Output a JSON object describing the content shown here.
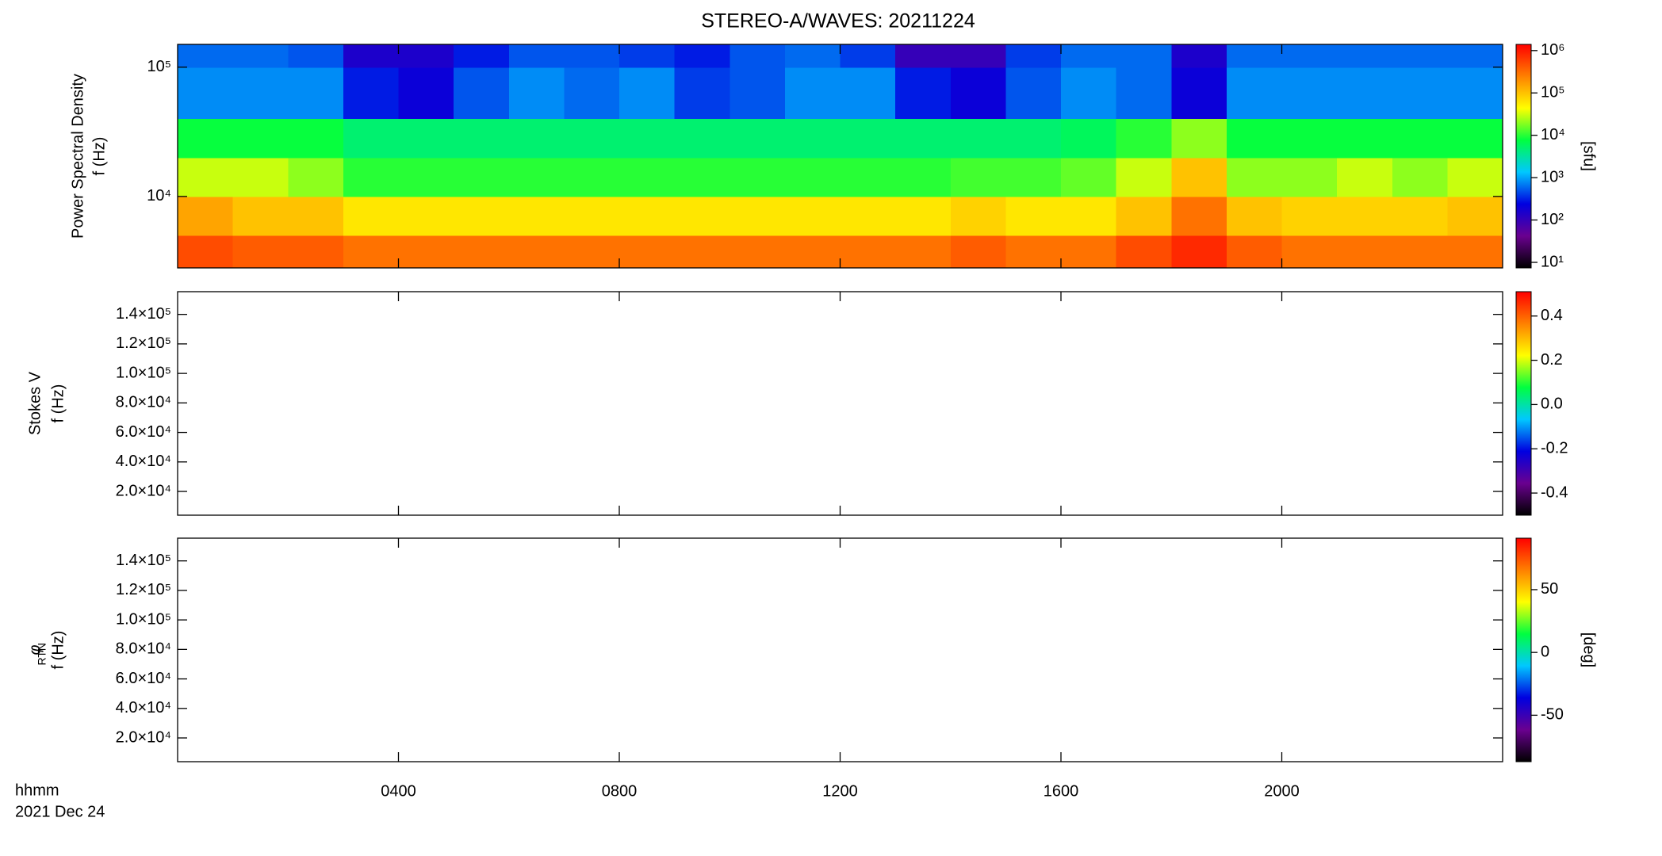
{
  "title": "STEREO-A/WAVES: 20211224",
  "time_axis": {
    "xlim": [
      0,
      24
    ],
    "xticks": [
      {
        "value": 4,
        "label": "0400"
      },
      {
        "value": 8,
        "label": "0800"
      },
      {
        "value": 12,
        "label": "1200"
      },
      {
        "value": 16,
        "label": "1600"
      },
      {
        "value": 20,
        "label": "2000"
      }
    ],
    "label": "hhmm",
    "date": "2021 Dec 24"
  },
  "colormap": [
    "#000000",
    "#6a0090",
    "#0000e0",
    "#00c8ff",
    "#00ff40",
    "#ffff00",
    "#ff8000",
    "#ff0000"
  ],
  "chart_data": [
    {
      "type": "heatmap",
      "ylabel": [
        "Power Spectral Density",
        "f (Hz)"
      ],
      "log_y": true,
      "ylim": [
        2800,
        150000
      ],
      "yticks": [
        {
          "value": 10000,
          "label": "10⁴"
        },
        {
          "value": 100000,
          "label": "10⁵"
        }
      ],
      "x_bins": [
        0,
        1,
        2,
        3,
        4,
        5,
        6,
        7,
        8,
        9,
        10,
        11,
        12,
        13,
        14,
        15,
        16,
        17,
        18,
        19,
        20,
        21,
        22,
        23,
        24
      ],
      "y_bins": [
        2800,
        5000,
        10000,
        20000,
        40000,
        100000,
        150000
      ],
      "z": [
        [
          500000,
          400000,
          400000,
          300000,
          300000,
          300000,
          300000,
          300000,
          300000,
          300000,
          300000,
          300000,
          300000,
          300000,
          400000,
          300000,
          300000,
          500000,
          800000,
          400000,
          300000,
          300000,
          300000,
          300000
        ],
        [
          150000,
          100000,
          100000,
          60000,
          60000,
          60000,
          60000,
          60000,
          60000,
          60000,
          60000,
          60000,
          60000,
          60000,
          80000,
          60000,
          60000,
          100000,
          300000,
          100000,
          80000,
          80000,
          80000,
          100000
        ],
        [
          30000,
          30000,
          20000,
          10000,
          10000,
          10000,
          10000,
          10000,
          10000,
          10000,
          10000,
          10000,
          10000,
          10000,
          12000,
          12000,
          15000,
          30000,
          100000,
          20000,
          20000,
          30000,
          20000,
          30000
        ],
        [
          8000,
          8000,
          8000,
          5000,
          5000,
          5000,
          5000,
          5000,
          5000,
          5000,
          5000,
          5000,
          5000,
          5000,
          5000,
          5000,
          6000,
          10000,
          20000,
          8000,
          8000,
          8000,
          8000,
          8000
        ],
        [
          800,
          800,
          800,
          300,
          200,
          500,
          800,
          600,
          800,
          400,
          500,
          800,
          800,
          300,
          200,
          500,
          800,
          600,
          200,
          800,
          800,
          800,
          800,
          800
        ],
        [
          600,
          600,
          500,
          150,
          150,
          300,
          500,
          500,
          400,
          300,
          500,
          600,
          400,
          100,
          100,
          400,
          600,
          600,
          150,
          600,
          600,
          600,
          600,
          600
        ]
      ],
      "colorbar": {
        "log": true,
        "zlim": [
          7.4,
          1400000
        ],
        "label": "[sfu]",
        "zticks": [
          {
            "value": 10,
            "label": "10¹"
          },
          {
            "value": 100,
            "label": "10²"
          },
          {
            "value": 1000,
            "label": "10³"
          },
          {
            "value": 10000,
            "label": "10⁴"
          },
          {
            "value": 100000,
            "label": "10⁵"
          },
          {
            "value": 1000000,
            "label": "10⁶"
          }
        ]
      }
    },
    {
      "type": "heatmap",
      "ylabel": [
        "Stokes V",
        "f (Hz)"
      ],
      "log_y": false,
      "ylim": [
        3900,
        155400
      ],
      "yticks": [
        {
          "value": 20000,
          "label": "2.0×10⁴"
        },
        {
          "value": 40000,
          "label": "4.0×10⁴"
        },
        {
          "value": 60000,
          "label": "6.0×10⁴"
        },
        {
          "value": 80000,
          "label": "8.0×10⁴"
        },
        {
          "value": 100000,
          "label": "1.0×10⁵"
        },
        {
          "value": 120000,
          "label": "1.2×10⁵"
        },
        {
          "value": 140000,
          "label": "1.4×10⁵"
        }
      ],
      "colorbar": {
        "log": false,
        "zlim": [
          -0.5,
          0.51
        ],
        "zticks": [
          {
            "value": -0.4,
            "label": "-0.4"
          },
          {
            "value": -0.2,
            "label": "-0.2"
          },
          {
            "value": 0,
            "label": "0.0"
          },
          {
            "value": 0.2,
            "label": "0.2"
          },
          {
            "value": 0.4,
            "label": "0.4"
          }
        ]
      }
    },
    {
      "type": "heatmap",
      "ylabel": [
        "φ",
        "f (Hz)"
      ],
      "ylabel_sub": "RTN",
      "log_y": false,
      "ylim": [
        3900,
        155400
      ],
      "yticks": [
        {
          "value": 20000,
          "label": "2.0×10⁴"
        },
        {
          "value": 40000,
          "label": "4.0×10⁴"
        },
        {
          "value": 60000,
          "label": "6.0×10⁴"
        },
        {
          "value": 80000,
          "label": "8.0×10⁴"
        },
        {
          "value": 100000,
          "label": "1.0×10⁵"
        },
        {
          "value": 120000,
          "label": "1.2×10⁵"
        },
        {
          "value": 140000,
          "label": "1.4×10⁵"
        }
      ],
      "colorbar": {
        "log": false,
        "zlim": [
          -87,
          91
        ],
        "label": "[deg]",
        "zticks": [
          -50,
          0,
          50
        ]
      }
    }
  ]
}
